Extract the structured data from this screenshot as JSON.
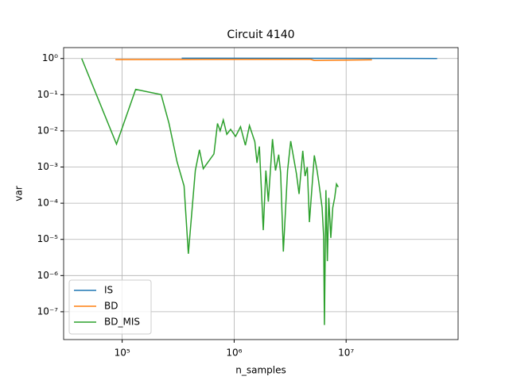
{
  "chart_data": {
    "type": "line",
    "title": "Circuit 4140",
    "xlabel": "n_samples",
    "ylabel": "var",
    "xscale": "log",
    "yscale": "log",
    "grid": true,
    "legend": "lower left",
    "xlim": [
      30000,
      100000000
    ],
    "ylim": [
      1.7e-08,
      2
    ],
    "xticks": [
      {
        "value": 100000,
        "label": "10⁵"
      },
      {
        "value": 1000000,
        "label": "10⁶"
      },
      {
        "value": 10000000,
        "label": "10⁷"
      }
    ],
    "yticks": [
      {
        "value": 1e-07,
        "label": "10⁻⁷"
      },
      {
        "value": 1e-06,
        "label": "10⁻⁶"
      },
      {
        "value": 1e-05,
        "label": "10⁻⁵"
      },
      {
        "value": 0.0001,
        "label": "10⁻⁴"
      },
      {
        "value": 0.001,
        "label": "10⁻³"
      },
      {
        "value": 0.01,
        "label": "10⁻²"
      },
      {
        "value": 0.1,
        "label": "10⁻¹"
      },
      {
        "value": 1,
        "label": "10⁰"
      }
    ],
    "series": [
      {
        "name": "IS",
        "color": "#1f77b4",
        "x": [
          340000,
          5000000,
          65000000
        ],
        "values": [
          1.02,
          1.01,
          1.0
        ]
      },
      {
        "name": "BD",
        "color": "#ff7f0e",
        "x": [
          87000,
          340000,
          4800000,
          5200000,
          17000000
        ],
        "values": [
          0.93,
          0.94,
          0.95,
          0.88,
          0.92
        ]
      },
      {
        "name": "BD_MIS",
        "color": "#2ca02c",
        "x": [
          43500,
          89000,
          132000,
          223000,
          262000,
          309000,
          357000,
          390000,
          450000,
          490000,
          530000,
          660000,
          710000,
          750000,
          800000,
          860000,
          930000,
          1030000,
          1140000,
          1260000,
          1370000,
          1530000,
          1600000,
          1680000,
          1820000,
          1920000,
          2020000,
          2200000,
          2340000,
          2500000,
          2600000,
          2750000,
          3000000,
          3200000,
          3600000,
          3800000,
          4100000,
          4300000,
          4500000,
          4700000,
          5200000,
          5500000,
          5700000,
          6100000,
          6300000,
          6400000,
          6600000,
          6800000,
          7000000,
          7300000,
          7600000,
          7900000,
          8200000,
          8500000
        ],
        "values": [
          1.0,
          0.0043,
          0.14,
          0.1,
          0.016,
          0.0014,
          0.0003,
          4e-06,
          0.0008,
          0.003,
          0.0009,
          0.0023,
          0.016,
          0.01,
          0.02,
          0.008,
          0.011,
          0.007,
          0.013,
          0.004,
          0.014,
          0.005,
          0.0013,
          0.0037,
          1.8e-05,
          0.0008,
          0.00011,
          0.0059,
          0.0008,
          0.0022,
          0.0007,
          4.6e-06,
          0.0008,
          0.0052,
          0.00065,
          0.00018,
          0.0028,
          0.00056,
          0.001,
          3e-05,
          0.0021,
          0.0008,
          0.00038,
          7.6e-05,
          1.2e-05,
          4.3e-08,
          0.00023,
          2.5e-06,
          0.00014,
          1.1e-05,
          7.6e-05,
          0.00014,
          0.00034,
          0.00028
        ]
      }
    ]
  }
}
